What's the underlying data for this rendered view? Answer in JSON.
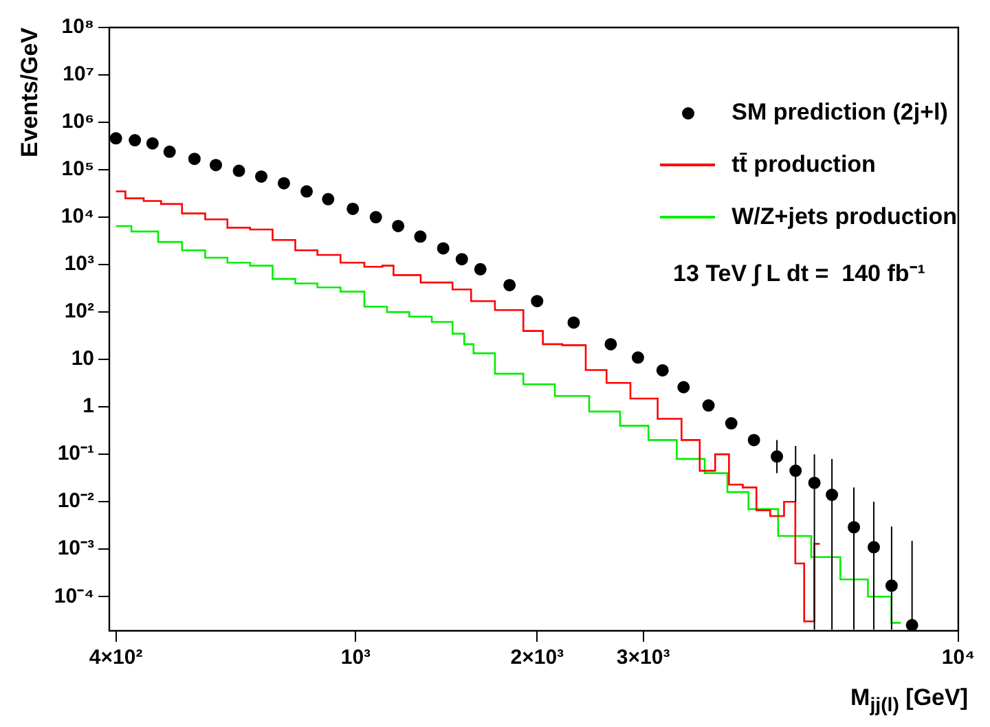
{
  "chart_data": {
    "type": "step",
    "ylabel": "Events/GeV",
    "xlabel": "M$_{jj(l)}$ [GeV]",
    "log": "xy",
    "legend": "top right",
    "xlim": [
      390,
      10000
    ],
    "ylim": [
      1.9e-05,
      100000000
    ],
    "xticks": [
      {
        "value": 400,
        "label": "4×10²"
      },
      {
        "value": 1000,
        "label": "10³"
      },
      {
        "value": 2000,
        "label": "2×10³"
      },
      {
        "value": 3000,
        "label": "3×10³"
      },
      {
        "value": 10000,
        "label": "10⁴"
      }
    ],
    "yticks": [
      {
        "value": 0.0001,
        "label": "10⁻⁴"
      },
      {
        "value": 0.001,
        "label": "10⁻³"
      },
      {
        "value": 0.01,
        "label": "10⁻²"
      },
      {
        "value": 0.1,
        "label": "10⁻¹"
      },
      1,
      10,
      {
        "value": 100,
        "label": "10²"
      },
      {
        "value": 1000,
        "label": "10³"
      },
      {
        "value": 10000,
        "label": "10⁴"
      },
      {
        "value": 100000,
        "label": "10⁵"
      },
      {
        "value": 1000000,
        "label": "10⁶"
      },
      {
        "value": 10000000,
        "label": "10⁷"
      },
      {
        "value": 100000000,
        "label": "10⁸"
      }
    ],
    "annotations": [
      "13 TeV ∫ L dt =  140 fb⁻¹"
    ],
    "series": [
      {
        "name": "SM prediction (2j+l)",
        "type": "scatter",
        "marker": "circle",
        "color": "#000000",
        "x": [
          400,
          430,
          460,
          491,
          540,
          586,
          640,
          697,
          760,
          829,
          900,
          989,
          1080,
          1176,
          1280,
          1397,
          1500,
          1610,
          1800,
          2000,
          2300,
          2650,
          2940,
          3230,
          3500,
          3850,
          4200,
          4580,
          5000,
          5370,
          5770,
          6170,
          6710,
          7240,
          7750,
          8380
        ],
        "values": [
          460000,
          420000,
          360000,
          240000,
          170000,
          126000,
          95000,
          72000,
          52000,
          35000,
          24000,
          15000,
          10000,
          6500,
          3900,
          2200,
          1300,
          800,
          370,
          170,
          60,
          21,
          11,
          5.9,
          2.6,
          1.07,
          0.45,
          0.2,
          0.09,
          0.045,
          0.025,
          0.014,
          0.0029,
          0.0011,
          0.00017,
          2.5e-05
        ],
        "errors": [
          null,
          null,
          null,
          null,
          null,
          null,
          null,
          null,
          null,
          null,
          null,
          null,
          null,
          null,
          null,
          null,
          null,
          null,
          null,
          null,
          null,
          null,
          null,
          null,
          null,
          null,
          null,
          null,
          [
            0.04,
            0.2
          ],
          [
            0.01,
            0.15
          ],
          [
            2e-05,
            0.1
          ],
          [
            2e-05,
            0.08
          ],
          [
            2e-05,
            0.02
          ],
          [
            2e-05,
            0.01
          ],
          [
            2e-05,
            0.003
          ],
          [
            2e-05,
            0.0015
          ]
        ]
      },
      {
        "name": "tt̄ production",
        "marker": "none",
        "color": "#ff0000",
        "x": [
          400,
          430,
          460,
          491,
          540,
          586,
          640,
          697,
          760,
          829,
          900,
          989,
          1080,
          1135,
          1176,
          1397,
          1500,
          1610,
          1800,
          2000,
          2090,
          2320,
          2500,
          2720,
          3000,
          3350,
          3600,
          3850,
          4050,
          4280,
          4500,
          4750,
          5000,
          5280,
          5450,
          5650,
          5890
        ],
        "values": [
          35000,
          25000,
          22000,
          19000,
          12000,
          9000,
          6000,
          5500,
          3300,
          2000,
          1600,
          1100,
          900,
          950,
          600,
          420,
          300,
          170,
          110,
          40,
          21,
          20,
          6,
          3.2,
          1.5,
          0.56,
          0.2,
          0.045,
          0.1,
          0.023,
          0.02,
          0.0066,
          0.005,
          0.01,
          0.0005,
          3e-05,
          0.0013
        ]
      },
      {
        "name": "W/Z+jets production",
        "marker": "none",
        "color": "#00ee00",
        "x": [
          400,
          450,
          491,
          540,
          586,
          640,
          697,
          760,
          829,
          900,
          989,
          1080,
          1176,
          1280,
          1397,
          1500,
          1528,
          1610,
          1800,
          2000,
          2290,
          2600,
          2900,
          3230,
          3600,
          4000,
          4280,
          4700,
          5370,
          6050,
          6710,
          7470,
          8030
        ],
        "values": [
          6500,
          5000,
          3000,
          2000,
          1400,
          1100,
          950,
          500,
          400,
          330,
          270,
          130,
          100,
          80,
          62,
          35,
          21,
          13.5,
          5,
          3,
          1.7,
          0.8,
          0.4,
          0.2,
          0.08,
          0.04,
          0.016,
          0.007,
          0.0019,
          0.00068,
          0.00023,
          0.0001,
          2.8e-05
        ]
      }
    ]
  }
}
